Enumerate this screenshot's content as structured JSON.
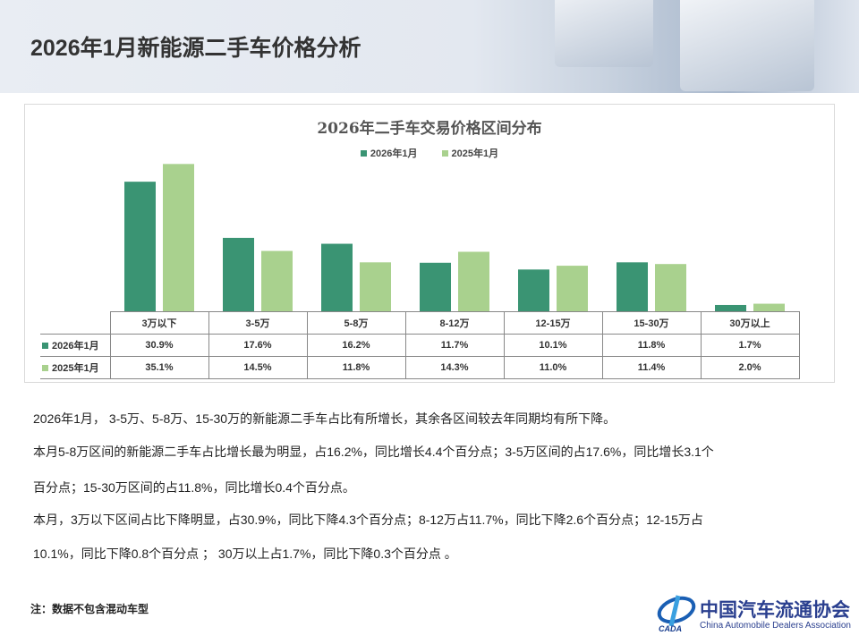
{
  "header": {
    "title": "2026年1月新能源二手车价格分析"
  },
  "chart_data": {
    "type": "bar",
    "title": "2026年二手车交易价格区间分布",
    "categories": [
      "3万以下",
      "3-5万",
      "5-8万",
      "8-12万",
      "12-15万",
      "15-30万",
      "30万以上"
    ],
    "series": [
      {
        "name": "2026年1月",
        "values": [
          30.9,
          17.6,
          16.2,
          11.7,
          10.1,
          11.8,
          1.7
        ],
        "labels": [
          "30.9%",
          "17.6%",
          "16.2%",
          "11.7%",
          "10.1%",
          "11.8%",
          "1.7%"
        ],
        "color": "#3a9473"
      },
      {
        "name": "2025年1月",
        "values": [
          35.1,
          14.5,
          11.8,
          14.3,
          11.0,
          11.4,
          2.0
        ],
        "labels": [
          "35.1%",
          "14.5%",
          "11.8%",
          "14.3%",
          "11.0%",
          "11.4%",
          "2.0%"
        ],
        "color": "#a9d18e"
      }
    ],
    "legend_position": "top",
    "grid": false,
    "data_table": true,
    "ylim": [
      0,
      37
    ]
  },
  "paragraphs": [
    "2026年1月， 3-5万、5-8万、15-30万的新能源二手车占比有所增长，其余各区间较去年同期均有所下降。",
    "本月5-8万区间的新能源二手车占比增长最为明显，占16.2%，同比增长4.4个百分点；3-5万区间的占17.6%，同比增长3.1个",
    "百分点；15-30万区间的占11.8%，同比增长0.4个百分点。",
    "本月，3万以下区间占比下降明显，占30.9%，同比下降4.3个百分点；8-12万占11.7%，同比下降2.6个百分点；12-15万占",
    "10.1%，同比下降0.8个百分点 ； 30万以上占1.7%，同比下降0.3个百分点 。"
  ],
  "note": "注：数据不包含混动车型",
  "logo": {
    "cn": "中国汽车流通协会",
    "en": "China Automobile Dealers Association",
    "mark": "CADA"
  }
}
